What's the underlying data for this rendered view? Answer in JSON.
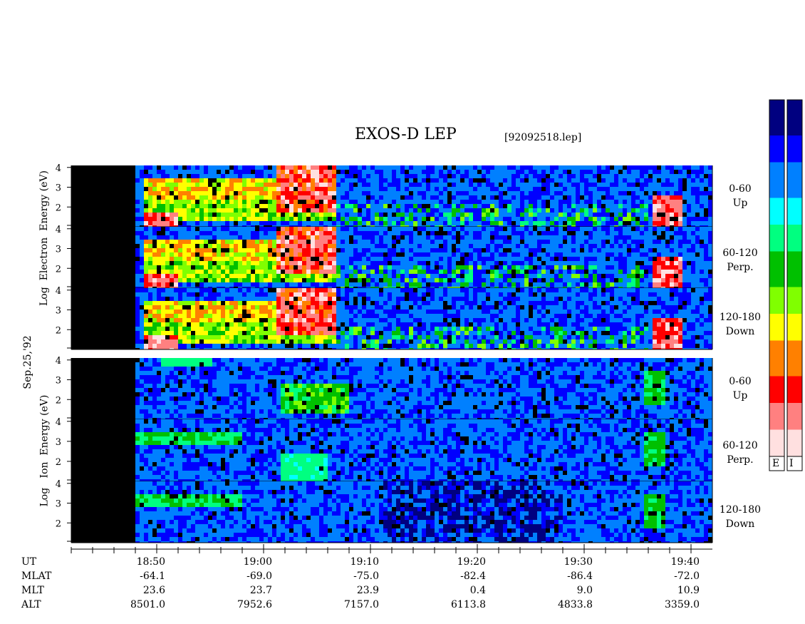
{
  "title": "EXOS-D LEP",
  "filename": "[92092518.lep]",
  "date_label": "Sep.25,'92",
  "species": [
    {
      "name": "Electron",
      "ylabel_words": [
        "Log",
        "Electron",
        "Energy",
        "(eV)"
      ]
    },
    {
      "name": "Ion",
      "ylabel_words": [
        "Log",
        "Ion",
        "Energy",
        "(eV)"
      ]
    }
  ],
  "pitch_bands": [
    {
      "range": "0-60",
      "dir": "Up"
    },
    {
      "range": "60-120",
      "dir": "Perp."
    },
    {
      "range": "120-180",
      "dir": "Down"
    }
  ],
  "colorbar_labels": [
    "E",
    "I"
  ],
  "colors": {
    "scale": [
      "#000080",
      "#0000ff",
      "#0080ff",
      "#00ffff",
      "#00ff80",
      "#00c000",
      "#80ff00",
      "#ffff00",
      "#ff8000",
      "#ff0000",
      "#ff8080",
      "#ffe0e0"
    ]
  },
  "chart_data": {
    "type": "heatmap",
    "title": "EXOS-D LEP",
    "x_ticks": [
      "18:50",
      "19:00",
      "19:10",
      "19:20",
      "19:30",
      "19:40"
    ],
    "y_ticks": [
      "4",
      "3",
      "2"
    ],
    "xlim": [
      "18:42",
      "19:40"
    ],
    "ylim": [
      1,
      4
    ],
    "ephemeris": {
      "labels": [
        "UT",
        "MLAT",
        "MLT",
        "ALT"
      ],
      "MLAT": [
        "-64.1",
        "-69.0",
        "-75.0",
        "-82.4",
        "-86.4",
        "-72.0"
      ],
      "MLT": [
        "23.6",
        "23.7",
        "23.9",
        "0.4",
        "9.0",
        "10.9"
      ],
      "ALT": [
        "8501.0",
        "7952.6",
        "7157.0",
        "6113.8",
        "4833.8",
        "3359.0"
      ]
    }
  }
}
